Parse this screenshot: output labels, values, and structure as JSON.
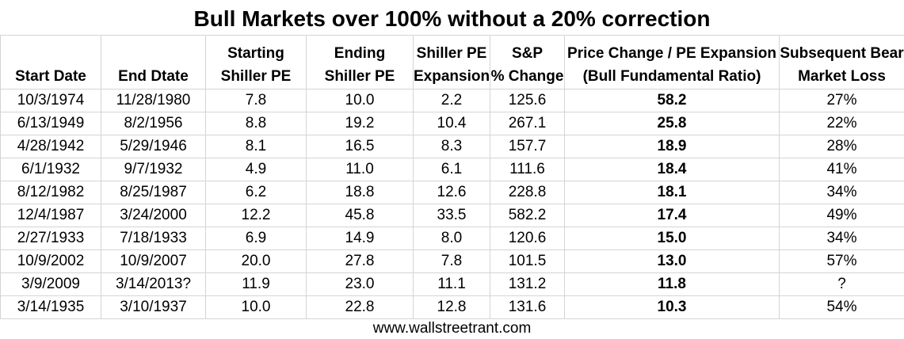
{
  "title": "Bull Markets over 100% without a 20% correction",
  "headers": [
    {
      "line1": "",
      "line2": "Start Date"
    },
    {
      "line1": "",
      "line2": "End Dtate"
    },
    {
      "line1": "Starting",
      "line2": "Shiller PE"
    },
    {
      "line1": "Ending",
      "line2": "Shiller PE"
    },
    {
      "line1": "Shiller PE",
      "line2": "Expansion"
    },
    {
      "line1": "S&P",
      "line2": "% Change"
    },
    {
      "line1": "Price Change / PE Expansion",
      "line2": "(Bull Fundamental Ratio)"
    },
    {
      "line1": "Subsequent Bear",
      "line2": "Market Loss"
    }
  ],
  "rows": [
    [
      "10/3/1974",
      "11/28/1980",
      "7.8",
      "10.0",
      "2.2",
      "125.6",
      "58.2",
      "27%"
    ],
    [
      "6/13/1949",
      "8/2/1956",
      "8.8",
      "19.2",
      "10.4",
      "267.1",
      "25.8",
      "22%"
    ],
    [
      "4/28/1942",
      "5/29/1946",
      "8.1",
      "16.5",
      "8.3",
      "157.7",
      "18.9",
      "28%"
    ],
    [
      "6/1/1932",
      "9/7/1932",
      "4.9",
      "11.0",
      "6.1",
      "111.6",
      "18.4",
      "41%"
    ],
    [
      "8/12/1982",
      "8/25/1987",
      "6.2",
      "18.8",
      "12.6",
      "228.8",
      "18.1",
      "34%"
    ],
    [
      "12/4/1987",
      "3/24/2000",
      "12.2",
      "45.8",
      "33.5",
      "582.2",
      "17.4",
      "49%"
    ],
    [
      "2/27/1933",
      "7/18/1933",
      "6.9",
      "14.9",
      "8.0",
      "120.6",
      "15.0",
      "34%"
    ],
    [
      "10/9/2002",
      "10/9/2007",
      "20.0",
      "27.8",
      "7.8",
      "101.5",
      "13.0",
      "57%"
    ],
    [
      "3/9/2009",
      "3/14/2013?",
      "11.9",
      "23.0",
      "11.1",
      "131.2",
      "11.8",
      "?"
    ],
    [
      "3/14/1935",
      "3/10/1937",
      "10.0",
      "22.8",
      "12.8",
      "131.6",
      "10.3",
      "54%"
    ]
  ],
  "footer": "www.wallstreetrant.com",
  "colors": {
    "gridline": "#d4d4d4",
    "text": "#000000",
    "background": "#ffffff"
  }
}
